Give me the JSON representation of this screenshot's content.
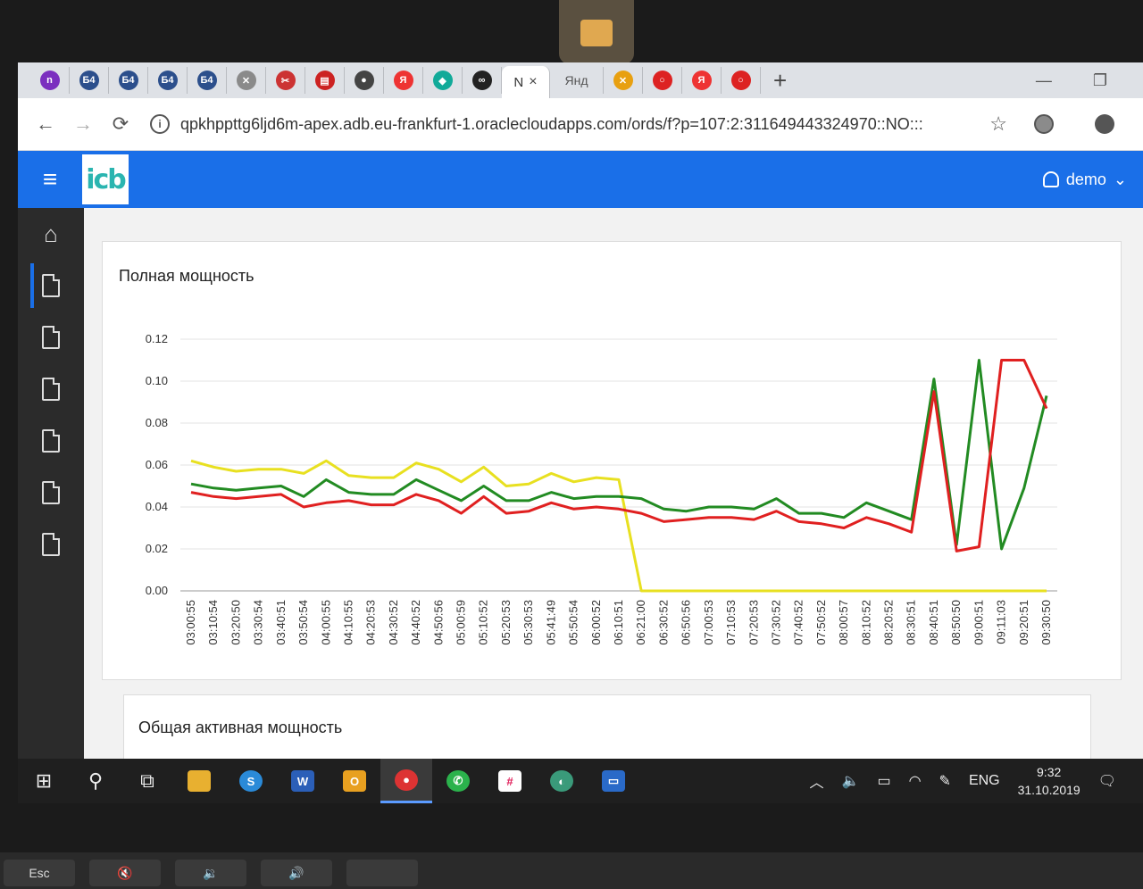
{
  "browser": {
    "tabs": [
      {
        "icon": "n-icon",
        "text": "n",
        "color": "#7b2fbf"
      },
      {
        "icon": "site-icon",
        "text": "Б4",
        "color": "#2c4f8c"
      },
      {
        "icon": "site-icon",
        "text": "Б4",
        "color": "#2c4f8c"
      },
      {
        "icon": "site-icon",
        "text": "Б4",
        "color": "#2c4f8c"
      },
      {
        "icon": "site-icon",
        "text": "Б4",
        "color": "#2c4f8c"
      },
      {
        "icon": "x-icon",
        "text": "✕",
        "color": "#8a8a8a"
      },
      {
        "icon": "share-icon",
        "text": "✂",
        "color": "#c33"
      },
      {
        "icon": "app-icon",
        "text": "▤",
        "color": "#c22"
      },
      {
        "icon": "globe-icon",
        "text": "●",
        "color": "#444"
      },
      {
        "icon": "yandex-icon",
        "text": "Я",
        "color": "#e33"
      },
      {
        "icon": "teal-icon",
        "text": "◆",
        "color": "#1a9"
      },
      {
        "icon": "infinity-icon",
        "text": "∞",
        "color": "#222"
      }
    ],
    "active_tab": {
      "label": "N",
      "close": "×"
    },
    "tab_yandex_text": "Янд",
    "tabs_after": [
      {
        "icon": "x-colored-icon",
        "text": "✕",
        "color": "#e8a010"
      },
      {
        "icon": "oracle-icon",
        "text": "○",
        "color": "#d22"
      },
      {
        "icon": "yandex-icon",
        "text": "Я",
        "color": "#e33"
      },
      {
        "icon": "oracle-icon",
        "text": "○",
        "color": "#d22"
      }
    ],
    "new_tab": "+",
    "window": {
      "minimize": "—",
      "restore": "❐"
    },
    "url": "qpkhppttg6ljd6m-apex.adb.eu-frankfurt-1.oraclecloudapps.com/ords/f?p=107:2:311649443324970::NO:::"
  },
  "apex": {
    "logo": "icb",
    "user": "demo",
    "accent": "#1a6fe8"
  },
  "region1": {
    "title": "Полная мощность"
  },
  "region2": {
    "title": "Общая активная мощность"
  },
  "chart_data": {
    "type": "line",
    "title": "Полная мощность",
    "ylim": [
      0,
      0.12
    ],
    "yticks": [
      "0.12",
      "0.10",
      "0.08",
      "0.06",
      "0.04",
      "0.02",
      "0.00"
    ],
    "x": [
      "03:00:55",
      "03:10:54",
      "03:20:50",
      "03:30:54",
      "03:40:51",
      "03:50:54",
      "04:00:55",
      "04:10:55",
      "04:20:53",
      "04:30:52",
      "04:40:52",
      "04:50:56",
      "05:00:59",
      "05:10:52",
      "05:20:53",
      "05:30:53",
      "05:41:49",
      "05:50:54",
      "06:00:52",
      "06:10:51",
      "06:21:00",
      "06:30:52",
      "06:50:56",
      "07:00:53",
      "07:10:53",
      "07:20:53",
      "07:30:52",
      "07:40:52",
      "07:50:52",
      "08:00:57",
      "08:10:52",
      "08:20:52",
      "08:30:51",
      "08:40:51",
      "08:50:50",
      "09:00:51",
      "09:11:03",
      "09:20:51",
      "09:30:50"
    ],
    "series": [
      {
        "color": "#e8e020",
        "values": [
          0.062,
          0.059,
          0.057,
          0.058,
          0.058,
          0.056,
          0.062,
          0.055,
          0.054,
          0.054,
          0.061,
          0.058,
          0.052,
          0.059,
          0.05,
          0.051,
          0.056,
          0.052,
          0.054,
          0.053,
          0.0,
          0.0,
          0.0,
          0.0,
          0.0,
          0.0,
          0.0,
          0.0,
          0.0,
          0.0,
          0.0,
          0.0,
          0.0,
          0.0,
          0.0,
          0.0,
          0.0,
          0.0,
          0.0
        ]
      },
      {
        "color": "#228b22",
        "values": [
          0.051,
          0.049,
          0.048,
          0.049,
          0.05,
          0.045,
          0.053,
          0.047,
          0.046,
          0.046,
          0.053,
          0.048,
          0.043,
          0.05,
          0.043,
          0.043,
          0.047,
          0.044,
          0.045,
          0.045,
          0.044,
          0.039,
          0.038,
          0.04,
          0.04,
          0.039,
          0.044,
          0.037,
          0.037,
          0.035,
          0.042,
          0.038,
          0.034,
          0.101,
          0.022,
          0.11,
          0.02,
          0.049,
          0.093
        ]
      },
      {
        "color": "#e02020",
        "values": [
          0.047,
          0.045,
          0.044,
          0.045,
          0.046,
          0.04,
          0.042,
          0.043,
          0.041,
          0.041,
          0.046,
          0.043,
          0.037,
          0.045,
          0.037,
          0.038,
          0.042,
          0.039,
          0.04,
          0.039,
          0.037,
          0.033,
          0.034,
          0.035,
          0.035,
          0.034,
          0.038,
          0.033,
          0.032,
          0.03,
          0.035,
          0.032,
          0.028,
          0.095,
          0.019,
          0.021,
          0.11,
          0.11,
          0.087
        ]
      }
    ]
  },
  "taskbar": {
    "lang": "ENG",
    "time": "9:32",
    "date": "31.10.2019"
  },
  "keyboard": {
    "esc": "Esc"
  }
}
